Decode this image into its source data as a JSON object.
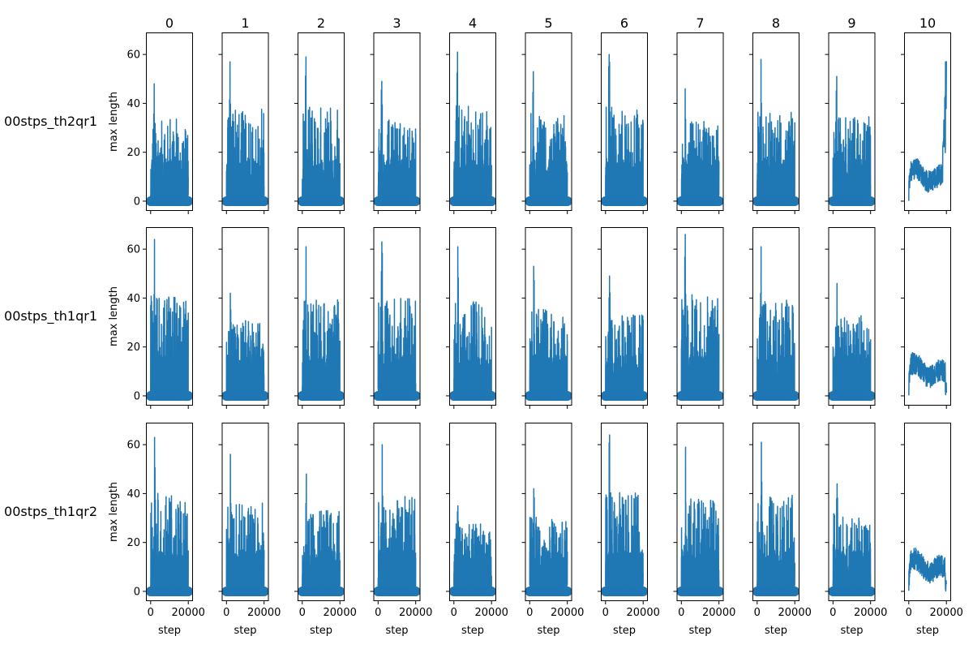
{
  "chart_data": {
    "type": "line",
    "layout": "grid of small multiples: 3 rows x 11 columns, shared x and y axes",
    "columns": [
      "0",
      "1",
      "2",
      "3",
      "4",
      "5",
      "6",
      "7",
      "8",
      "9",
      "10"
    ],
    "rows": [
      "00stps_th2qr1",
      "00stps_th1qr1",
      "00stps_th1qr2"
    ],
    "xlabel": "step",
    "ylabel": "max length",
    "xlim": [
      -2500,
      22500
    ],
    "ylim": [
      -4,
      69
    ],
    "xticks": [
      0,
      20000
    ],
    "xtick_labels": [
      "0",
      "20000"
    ],
    "yticks": [
      0,
      20,
      40,
      60
    ],
    "ytick_labels": [
      "0",
      "20",
      "40",
      "60"
    ],
    "grid": false,
    "series_color": "#1f77b4",
    "markers": "circle markers at y = 0 for columns 0-9; column 10 has no markers",
    "x_range": [
      0,
      20000
    ],
    "peaks": [
      [
        48,
        57,
        59,
        49,
        61,
        53,
        60,
        46,
        58,
        51,
        57
      ],
      [
        64,
        42,
        61,
        63,
        61,
        53,
        49,
        66,
        61,
        46,
        24
      ],
      [
        63,
        56,
        48,
        60,
        35,
        42,
        64,
        59,
        61,
        44,
        24
      ]
    ]
  }
}
